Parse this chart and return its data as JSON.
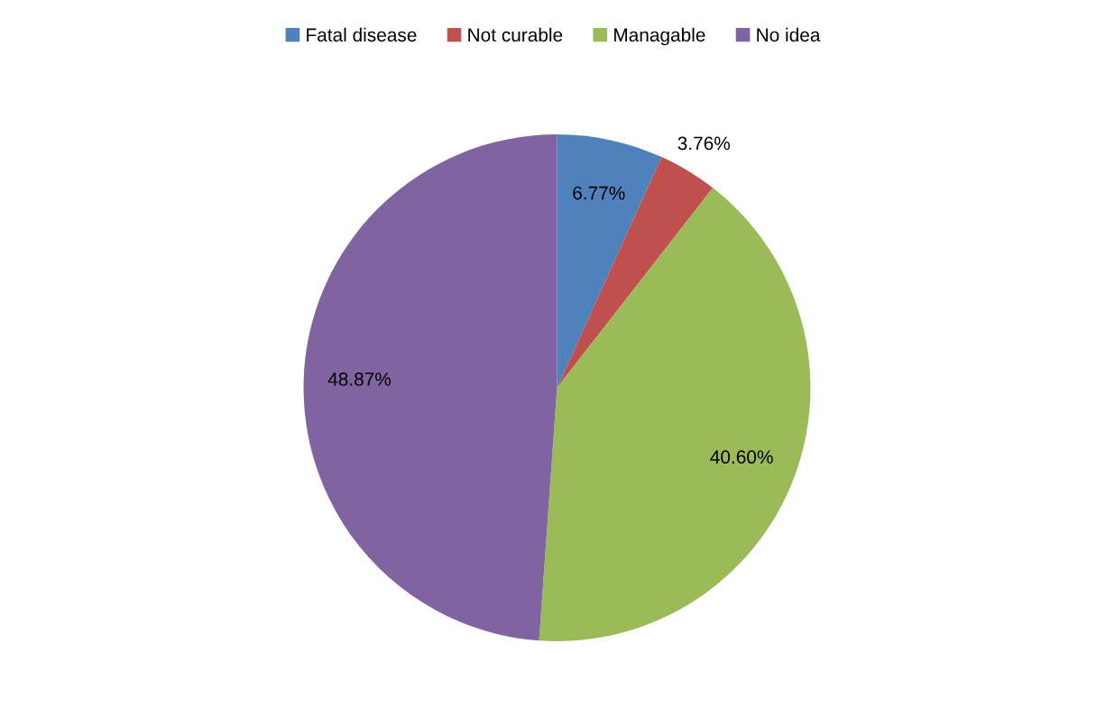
{
  "chart_data": {
    "type": "pie",
    "categories": [
      "Fatal disease",
      "Not curable",
      "Managable",
      "No idea"
    ],
    "values": [
      6.77,
      3.76,
      40.6,
      48.87
    ],
    "colors": [
      "#4f81bd",
      "#c0504d",
      "#9bbb59",
      "#8064a2"
    ],
    "value_labels": [
      "6.77%",
      "3.76%",
      "40.60%",
      "48.87%"
    ],
    "legend": "top"
  }
}
